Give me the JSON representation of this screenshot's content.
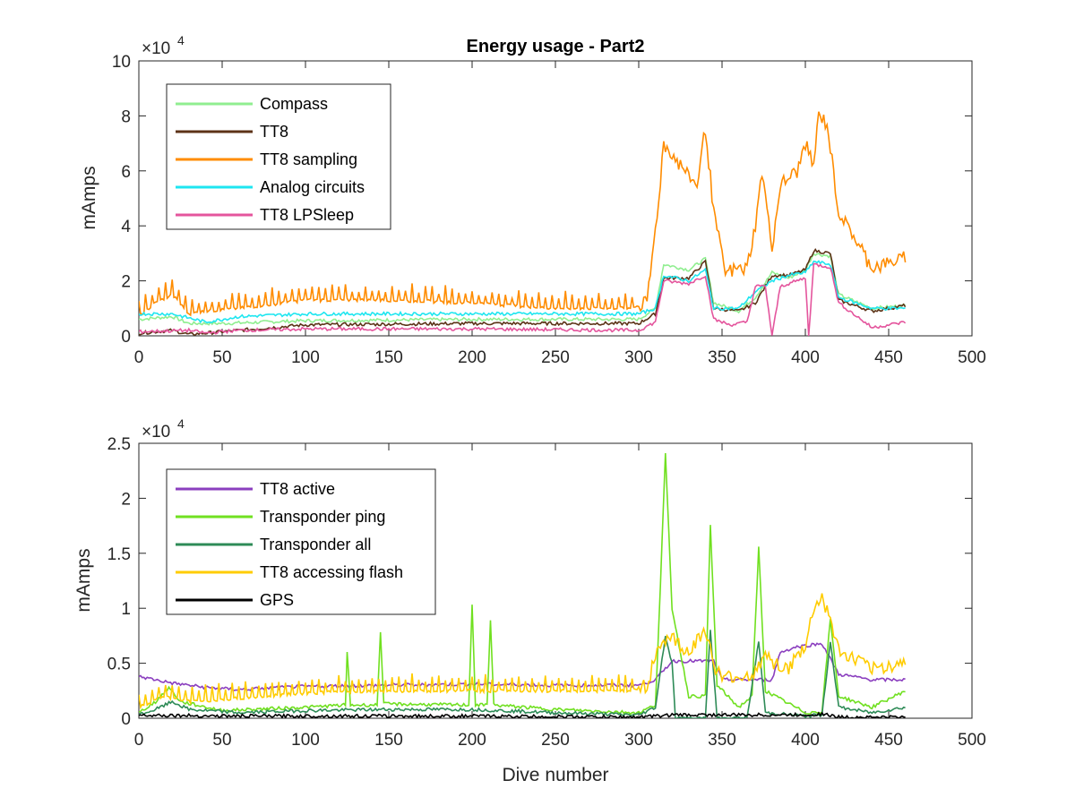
{
  "chart_data": [
    {
      "type": "line",
      "title": "Energy usage - Part2",
      "xlabel": "",
      "ylabel": "mAmps",
      "xlim": [
        0,
        500
      ],
      "ylim": [
        0,
        100000
      ],
      "xticks": [
        0,
        50,
        100,
        150,
        200,
        250,
        300,
        350,
        400,
        450,
        500
      ],
      "yticks": [
        0,
        20000,
        40000,
        60000,
        80000,
        100000
      ],
      "ytick_labels": [
        "0",
        "2",
        "4",
        "6",
        "8",
        "10"
      ],
      "exponent_base": "×10",
      "exponent_power": "4",
      "legend_position": "top-left",
      "series": [
        {
          "name": "Compass",
          "color": "#90ee90",
          "spiky": false,
          "points": [
            [
              0,
              6000
            ],
            [
              20,
              7000
            ],
            [
              30,
              4500
            ],
            [
              50,
              4500
            ],
            [
              100,
              5500
            ],
            [
              200,
              6000
            ],
            [
              300,
              6000
            ],
            [
              310,
              10000
            ],
            [
              315,
              26000
            ],
            [
              330,
              24000
            ],
            [
              340,
              28000
            ],
            [
              345,
              12000
            ],
            [
              360,
              9000
            ],
            [
              370,
              14000
            ],
            [
              380,
              23000
            ],
            [
              390,
              21000
            ],
            [
              400,
              24000
            ],
            [
              405,
              30000
            ],
            [
              415,
              29000
            ],
            [
              420,
              15000
            ],
            [
              440,
              10000
            ],
            [
              460,
              11000
            ]
          ]
        },
        {
          "name": "TT8",
          "color": "#5c3317",
          "spiky": false,
          "points": [
            [
              0,
              1000
            ],
            [
              20,
              2000
            ],
            [
              30,
              500
            ],
            [
              50,
              1500
            ],
            [
              100,
              4000
            ],
            [
              200,
              4500
            ],
            [
              300,
              4500
            ],
            [
              310,
              8000
            ],
            [
              315,
              21000
            ],
            [
              330,
              21000
            ],
            [
              340,
              27000
            ],
            [
              345,
              10000
            ],
            [
              360,
              9000
            ],
            [
              370,
              12000
            ],
            [
              380,
              22000
            ],
            [
              390,
              22000
            ],
            [
              400,
              24000
            ],
            [
              405,
              31000
            ],
            [
              415,
              30000
            ],
            [
              420,
              13000
            ],
            [
              440,
              9000
            ],
            [
              460,
              11000
            ]
          ]
        },
        {
          "name": "TT8 sampling",
          "color": "#ff8c00",
          "spiky": true,
          "points": [
            [
              0,
              7000
            ],
            [
              10,
              12000
            ],
            [
              20,
              15000
            ],
            [
              30,
              8000
            ],
            [
              40,
              9000
            ],
            [
              60,
              10000
            ],
            [
              100,
              13000
            ],
            [
              150,
              13000
            ],
            [
              200,
              12000
            ],
            [
              250,
              10000
            ],
            [
              295,
              10000
            ],
            [
              305,
              12000
            ],
            [
              312,
              50000
            ],
            [
              315,
              70000
            ],
            [
              325,
              62000
            ],
            [
              335,
              55000
            ],
            [
              340,
              76000
            ],
            [
              345,
              45000
            ],
            [
              352,
              23000
            ],
            [
              365,
              25000
            ],
            [
              370,
              40000
            ],
            [
              374,
              60000
            ],
            [
              380,
              32000
            ],
            [
              385,
              55000
            ],
            [
              395,
              60000
            ],
            [
              400,
              70000
            ],
            [
              405,
              62000
            ],
            [
              408,
              80000
            ],
            [
              413,
              77000
            ],
            [
              420,
              45000
            ],
            [
              440,
              25000
            ],
            [
              460,
              28000
            ]
          ]
        },
        {
          "name": "Analog circuits",
          "color": "#1ee6f0",
          "spiky": false,
          "points": [
            [
              0,
              8000
            ],
            [
              20,
              8000
            ],
            [
              40,
              5000
            ],
            [
              60,
              7000
            ],
            [
              100,
              8000
            ],
            [
              200,
              8000
            ],
            [
              300,
              8000
            ],
            [
              310,
              10000
            ],
            [
              315,
              22000
            ],
            [
              330,
              20000
            ],
            [
              340,
              24000
            ],
            [
              345,
              10000
            ],
            [
              360,
              10000
            ],
            [
              370,
              16000
            ],
            [
              380,
              20000
            ],
            [
              390,
              22000
            ],
            [
              400,
              23000
            ],
            [
              405,
              27000
            ],
            [
              415,
              26000
            ],
            [
              420,
              14000
            ],
            [
              440,
              10000
            ],
            [
              460,
              10000
            ]
          ]
        },
        {
          "name": "TT8 LPSleep",
          "color": "#e4559d",
          "spiky": false,
          "points": [
            [
              0,
              1500
            ],
            [
              30,
              2000
            ],
            [
              40,
              1000
            ],
            [
              60,
              2000
            ],
            [
              100,
              2500
            ],
            [
              200,
              2500
            ],
            [
              300,
              2000
            ],
            [
              310,
              5000
            ],
            [
              315,
              20000
            ],
            [
              330,
              19000
            ],
            [
              340,
              22000
            ],
            [
              345,
              6000
            ],
            [
              355,
              4000
            ],
            [
              365,
              5000
            ],
            [
              370,
              18000
            ],
            [
              376,
              18000
            ],
            [
              380,
              0
            ],
            [
              385,
              18000
            ],
            [
              395,
              20000
            ],
            [
              400,
              21000
            ],
            [
              402,
              0
            ],
            [
              405,
              26000
            ],
            [
              415,
              25000
            ],
            [
              420,
              12000
            ],
            [
              440,
              3000
            ],
            [
              460,
              5000
            ]
          ]
        }
      ]
    },
    {
      "type": "line",
      "title": "",
      "xlabel": "Dive number",
      "ylabel": "mAmps",
      "xlim": [
        0,
        500
      ],
      "ylim": [
        0,
        25000
      ],
      "xticks": [
        0,
        50,
        100,
        150,
        200,
        250,
        300,
        350,
        400,
        450,
        500
      ],
      "yticks": [
        0,
        5000,
        10000,
        15000,
        20000,
        25000
      ],
      "ytick_labels": [
        "0",
        "0.5",
        "1",
        "1.5",
        "2",
        "2.5"
      ],
      "exponent_base": "×10",
      "exponent_power": "4",
      "legend_position": "top-left",
      "series": [
        {
          "name": "TT8 active",
          "color": "#8b3fbf",
          "spiky": false,
          "points": [
            [
              0,
              3800
            ],
            [
              20,
              3200
            ],
            [
              40,
              2800
            ],
            [
              60,
              2600
            ],
            [
              100,
              2900
            ],
            [
              150,
              3000
            ],
            [
              200,
              3100
            ],
            [
              250,
              3000
            ],
            [
              300,
              3000
            ],
            [
              310,
              3500
            ],
            [
              320,
              5200
            ],
            [
              345,
              5200
            ],
            [
              350,
              3500
            ],
            [
              380,
              3500
            ],
            [
              385,
              6000
            ],
            [
              395,
              6500
            ],
            [
              410,
              6800
            ],
            [
              420,
              4000
            ],
            [
              440,
              3500
            ],
            [
              460,
              3500
            ]
          ]
        },
        {
          "name": "Transponder ping",
          "color": "#70e020",
          "spiky": false,
          "points": [
            [
              0,
              500
            ],
            [
              10,
              1500
            ],
            [
              18,
              2800
            ],
            [
              25,
              1500
            ],
            [
              50,
              700
            ],
            [
              100,
              1000
            ],
            [
              124,
              1200
            ],
            [
              125,
              6000
            ],
            [
              127,
              1200
            ],
            [
              143,
              1200
            ],
            [
              145,
              7800
            ],
            [
              147,
              1300
            ],
            [
              198,
              1200
            ],
            [
              200,
              10300
            ],
            [
              202,
              1200
            ],
            [
              209,
              1200
            ],
            [
              211,
              9000
            ],
            [
              213,
              1200
            ],
            [
              250,
              800
            ],
            [
              300,
              500
            ],
            [
              310,
              1200
            ],
            [
              313,
              12000
            ],
            [
              316,
              24000
            ],
            [
              320,
              10000
            ],
            [
              330,
              2000
            ],
            [
              340,
              2000
            ],
            [
              343,
              17500
            ],
            [
              347,
              3000
            ],
            [
              360,
              1000
            ],
            [
              368,
              2000
            ],
            [
              372,
              15500
            ],
            [
              376,
              2500
            ],
            [
              400,
              500
            ],
            [
              410,
              600
            ],
            [
              415,
              9000
            ],
            [
              420,
              2000
            ],
            [
              440,
              1000
            ],
            [
              460,
              2500
            ]
          ]
        },
        {
          "name": "Transponder all",
          "color": "#2e8b57",
          "spiky": false,
          "points": [
            [
              0,
              300
            ],
            [
              10,
              800
            ],
            [
              20,
              1500
            ],
            [
              30,
              800
            ],
            [
              60,
              500
            ],
            [
              100,
              700
            ],
            [
              150,
              800
            ],
            [
              200,
              800
            ],
            [
              250,
              500
            ],
            [
              300,
              300
            ],
            [
              310,
              1000
            ],
            [
              316,
              7500
            ],
            [
              320,
              5000
            ],
            [
              322,
              0
            ],
            [
              340,
              0
            ],
            [
              343,
              8000
            ],
            [
              347,
              0
            ],
            [
              365,
              0
            ],
            [
              372,
              7000
            ],
            [
              376,
              500
            ],
            [
              400,
              200
            ],
            [
              410,
              300
            ],
            [
              415,
              7000
            ],
            [
              420,
              1000
            ],
            [
              440,
              500
            ],
            [
              460,
              1000
            ]
          ]
        },
        {
          "name": "TT8 accessing flash",
          "color": "#ffcc00",
          "spiky": true,
          "points": [
            [
              0,
              1000
            ],
            [
              15,
              2000
            ],
            [
              30,
              1500
            ],
            [
              60,
              1800
            ],
            [
              100,
              2300
            ],
            [
              150,
              2500
            ],
            [
              200,
              2500
            ],
            [
              250,
              2500
            ],
            [
              295,
              2500
            ],
            [
              305,
              3000
            ],
            [
              312,
              6500
            ],
            [
              318,
              7500
            ],
            [
              330,
              6000
            ],
            [
              340,
              8000
            ],
            [
              345,
              5000
            ],
            [
              350,
              3500
            ],
            [
              370,
              4000
            ],
            [
              375,
              6000
            ],
            [
              380,
              5000
            ],
            [
              390,
              4500
            ],
            [
              400,
              6500
            ],
            [
              405,
              10000
            ],
            [
              410,
              11000
            ],
            [
              415,
              9000
            ],
            [
              420,
              6000
            ],
            [
              440,
              4500
            ],
            [
              460,
              5000
            ]
          ]
        },
        {
          "name": "GPS",
          "color": "#000000",
          "spiky": false,
          "points": [
            [
              0,
              300
            ],
            [
              50,
              200
            ],
            [
              100,
              200
            ],
            [
              200,
              200
            ],
            [
              300,
              100
            ],
            [
              320,
              300
            ],
            [
              400,
              300
            ],
            [
              410,
              400
            ],
            [
              420,
              100
            ],
            [
              460,
              100
            ]
          ]
        }
      ]
    }
  ]
}
